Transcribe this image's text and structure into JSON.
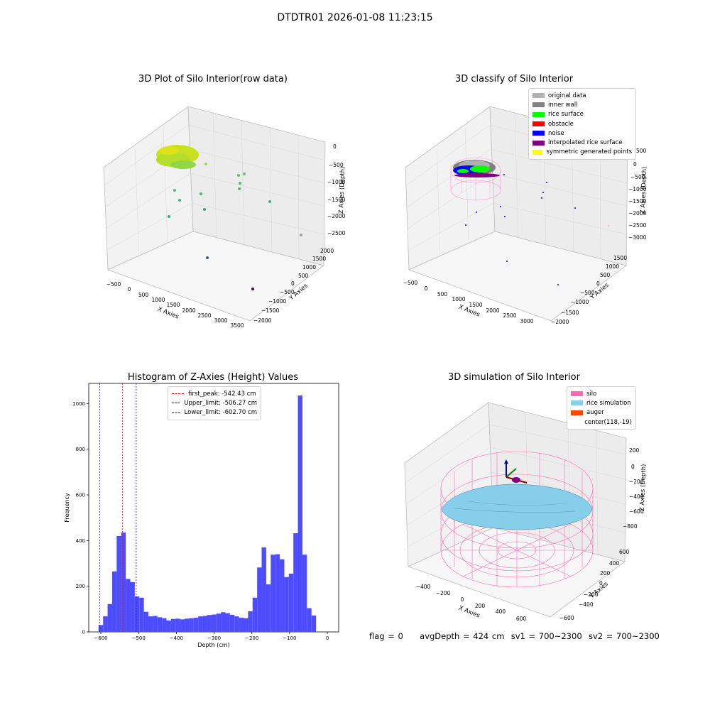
{
  "figure_title": "DTDTR01 2026-01-08 11:23:15",
  "footer": {
    "flag": "flag = 0",
    "avg_depth": "avgDepth = 424 cm",
    "sv1": "sv1 = 700~2300",
    "sv2": "sv2 = 700~2300"
  },
  "colors": {
    "histogram_bars": "#4d4dff",
    "first_peak_line": "#ff0000",
    "limit_lines": "#0000ff",
    "silo": "#ff69b4",
    "rice_simulation": "#87ceeb",
    "auger": "#ff4500"
  },
  "chart_data": [
    {
      "type": "scatter",
      "projection": "3d",
      "title": "3D Plot of Silo Interior(row data)",
      "xlabel": "X Axies",
      "ylabel": "Y Axies",
      "zlabel": "Z Axies (Depth)",
      "xticks": [
        "−500",
        "0",
        "500",
        "1000",
        "1500",
        "2000",
        "2500",
        "3000",
        "3500"
      ],
      "yticks": [
        "−2000",
        "−1500",
        "−1000",
        "−500",
        "0",
        "500",
        "1000",
        "1500",
        "2000"
      ],
      "zticks": [
        "0",
        "−500",
        "−1000",
        "−1500",
        "−2000",
        "−2500"
      ],
      "colormap": "viridis"
    },
    {
      "type": "scatter",
      "projection": "3d",
      "title": "3D classify of Silo Interior",
      "xlabel": "X Axies",
      "ylabel": "Y Axies",
      "zlabel": "Z Axies (Depth)",
      "xticks": [
        "−500",
        "0",
        "500",
        "1000",
        "1500",
        "2000",
        "2500",
        "3000"
      ],
      "yticks": [
        "−2000",
        "−1500",
        "−1000",
        "−500",
        "0",
        "500",
        "1000",
        "1500"
      ],
      "zticks": [
        "500",
        "0",
        "−500",
        "−1000",
        "−1500",
        "−2000",
        "−2500",
        "−3000"
      ],
      "legend": [
        {
          "label": "original data",
          "color": "#b0b0b0"
        },
        {
          "label": "inner wall",
          "color": "#808080"
        },
        {
          "label": "rice surface",
          "color": "#00ff00"
        },
        {
          "label": "obstacle",
          "color": "#ff0000"
        },
        {
          "label": "noise",
          "color": "#0000ff"
        },
        {
          "label": "interpolated rice surface",
          "color": "#800080"
        },
        {
          "label": "symmetric generated points",
          "color": "#ffff00"
        }
      ],
      "legend_position": "top-right"
    },
    {
      "type": "histogram",
      "title": "Histogram of Z-Axies (Height) Values",
      "xlabel": "Depth (cm)",
      "ylabel": "Frequency",
      "xlim": [
        -632,
        30
      ],
      "ylim": [
        0,
        1088
      ],
      "xticks": [
        -600,
        -500,
        -400,
        -300,
        -200,
        -100,
        0
      ],
      "yticks": [
        0,
        200,
        400,
        600,
        800,
        1000
      ],
      "bin_start": -606,
      "bin_width": 12,
      "counts": [
        30,
        68,
        122,
        265,
        420,
        435,
        232,
        218,
        155,
        150,
        88,
        68,
        70,
        64,
        60,
        50,
        57,
        58,
        55,
        58,
        60,
        62,
        68,
        70,
        74,
        76,
        80,
        86,
        82,
        75,
        68,
        62,
        60,
        90,
        150,
        282,
        370,
        208,
        338,
        340,
        318,
        240,
        255,
        432,
        1035,
        338,
        104,
        72
      ],
      "vlines": [
        {
          "label": "first_peak: -542.43 cm",
          "x": -542.43,
          "color": "#ff0000"
        },
        {
          "label": "Upper_limit: -506.27 cm",
          "x": -506.27,
          "color": "#0000ff"
        },
        {
          "label": "Lower_limit: -602.70 cm",
          "x": -602.7,
          "color": "#0000ff"
        }
      ],
      "legend_position": "top-center"
    },
    {
      "type": "surface",
      "projection": "3d",
      "title": "3D simulation of Silo Interior",
      "xlabel": "X Axies",
      "ylabel": "Y Axies",
      "zlabel": "Z Axies (Depth)",
      "xticks": [
        "−400",
        "−200",
        "0",
        "200",
        "400",
        "600"
      ],
      "yticks": [
        "−600",
        "−400",
        "−200",
        "0",
        "200",
        "400",
        "600"
      ],
      "zticks": [
        "200",
        "0",
        "−200",
        "−400",
        "−600",
        "−800"
      ],
      "legend": [
        {
          "label": "silo",
          "color": "#ff69b4"
        },
        {
          "label": "rice simulation",
          "color": "#87ceeb"
        },
        {
          "label": "auger",
          "color": "#ff4500"
        },
        {
          "label": "center(118,-19)",
          "color": ""
        }
      ],
      "legend_position": "top-right"
    }
  ]
}
